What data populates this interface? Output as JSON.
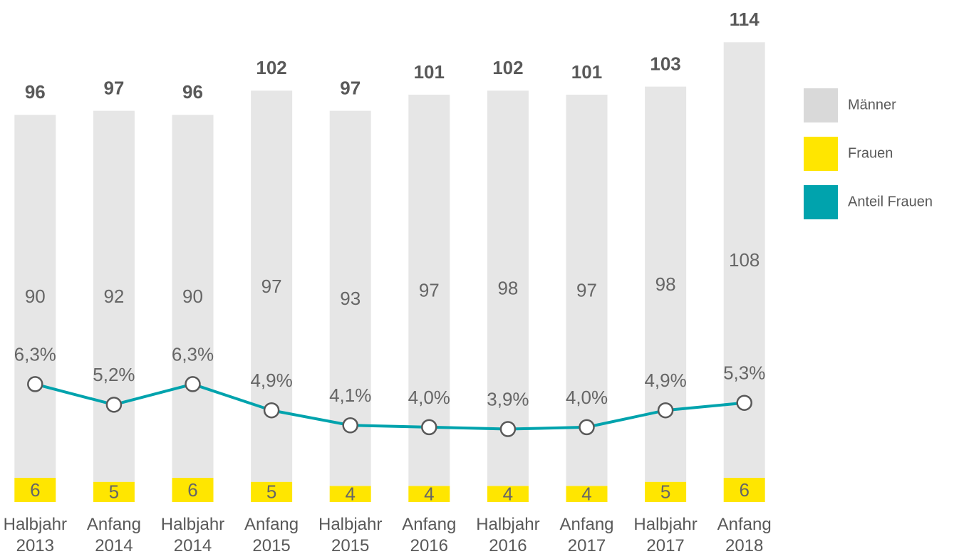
{
  "chart_data": {
    "type": "bar",
    "stacked": true,
    "categories": [
      "Halbjahr 2013",
      "Anfang 2014",
      "Halbjahr 2014",
      "Anfang 2015",
      "Halbjahr 2015",
      "Anfang 2016",
      "Halbjahr 2016",
      "Anfang 2017",
      "Halbjahr 2017",
      "Anfang 2018"
    ],
    "series": [
      {
        "name": "Männer",
        "color": "#e6e6e6",
        "legend_color": "#d9d9d9",
        "values": [
          90,
          92,
          90,
          97,
          93,
          97,
          98,
          97,
          98,
          108
        ]
      },
      {
        "name": "Frauen",
        "color": "#ffe600",
        "values": [
          6,
          5,
          6,
          5,
          4,
          4,
          4,
          4,
          5,
          6
        ]
      },
      {
        "name": "Anteil Frauen",
        "type": "line",
        "axis": "y2",
        "color": "#00a3ad",
        "values": [
          6.3,
          5.2,
          6.3,
          4.9,
          4.1,
          4.0,
          3.9,
          4.0,
          4.9,
          5.3
        ],
        "value_labels": [
          "6,3%",
          "5,2%",
          "6,3%",
          "4,9%",
          "4,1%",
          "4,0%",
          "3,9%",
          "4,0%",
          "4,9%",
          "5,3%"
        ]
      }
    ],
    "totals": [
      96,
      97,
      96,
      102,
      97,
      101,
      102,
      101,
      103,
      114
    ],
    "ylim": [
      0,
      116
    ],
    "y2lim": [
      0,
      25
    ],
    "legend": "right"
  }
}
